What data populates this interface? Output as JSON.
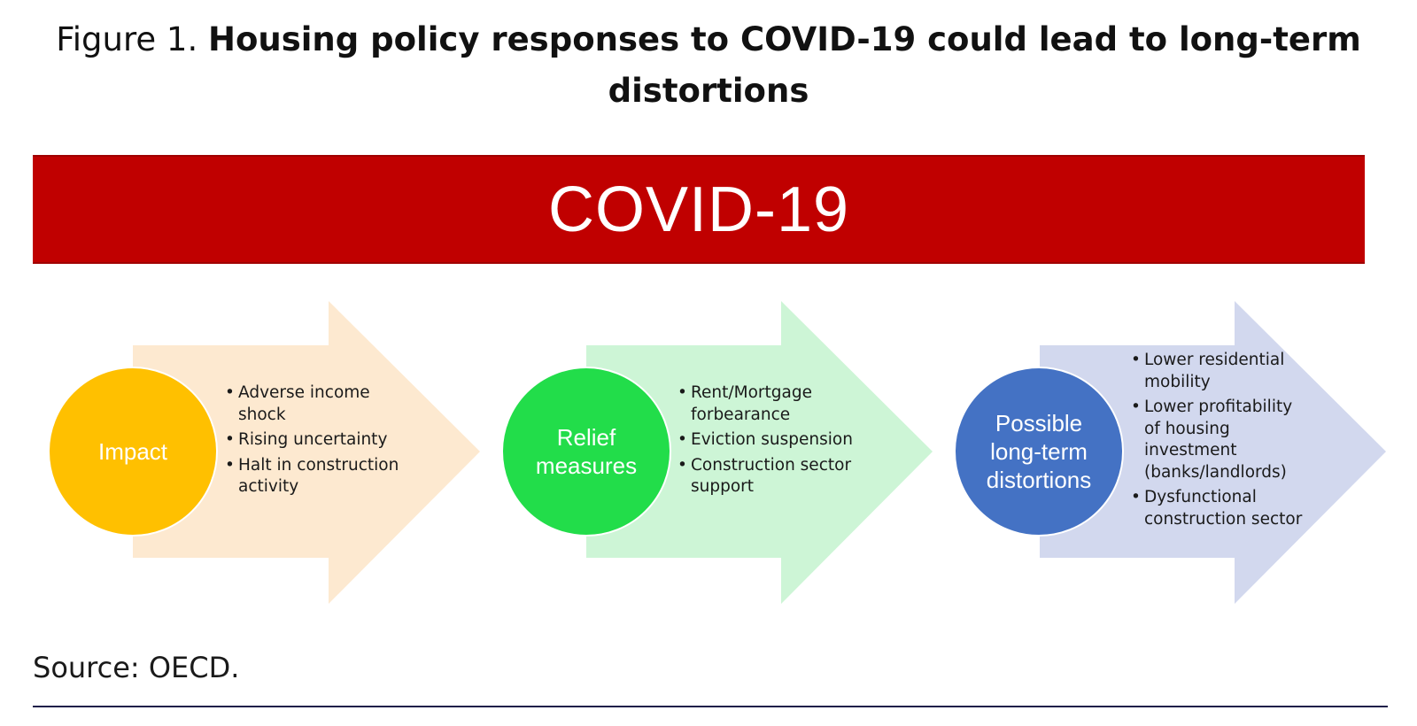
{
  "figure": {
    "prefix": "Figure 1.",
    "title": "Housing policy responses to COVID-19 could lead to long-term distortions"
  },
  "banner": {
    "label": "COVID-19",
    "color": "#c00000"
  },
  "stages": [
    {
      "label": "Impact",
      "circle_color": "#ffc000",
      "arrow_color": "#fde9d0",
      "bullets": [
        "Adverse income shock",
        "Rising uncertainty",
        "Halt in construction activity"
      ]
    },
    {
      "label": "Relief measures",
      "circle_color": "#22dd4a",
      "arrow_color": "#cdf5d6",
      "bullets": [
        "Rent/Mortgage forbearance",
        "Eviction suspension",
        "Construction sector support"
      ]
    },
    {
      "label": "Possible long-term distortions",
      "circle_color": "#4472c4",
      "arrow_color": "#d2d8ee",
      "bullets": [
        "Lower residential mobility",
        "Lower profitability of housing investment (banks/landlords)",
        "Dysfunctional construction sector"
      ]
    }
  ],
  "source": "Source: OECD."
}
